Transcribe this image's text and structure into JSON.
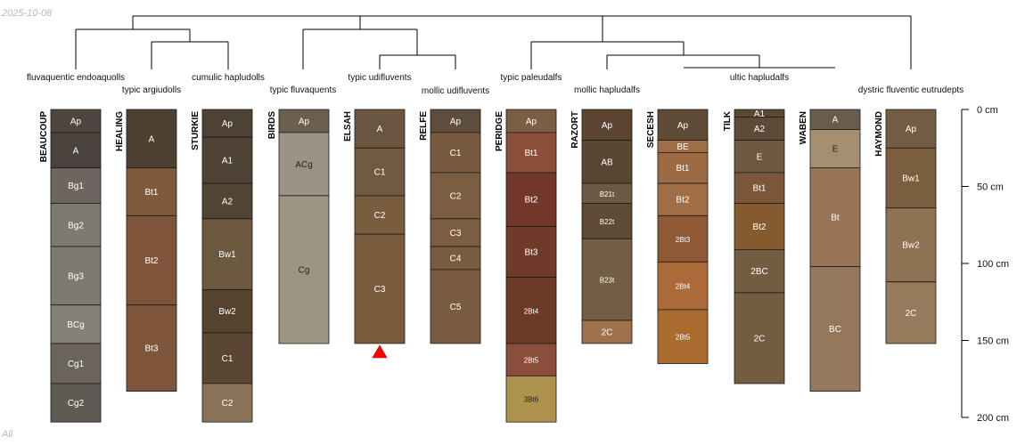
{
  "meta": {
    "date": "2025-10-08",
    "corner_label": "All"
  },
  "depth_axis": {
    "unit": "cm",
    "max": 200,
    "ticks": [
      {
        "value": 0,
        "label": "0 cm"
      },
      {
        "value": 50,
        "label": "50 cm"
      },
      {
        "value": 100,
        "label": "100 cm"
      },
      {
        "value": 150,
        "label": "150 cm"
      },
      {
        "value": 200,
        "label": "200 cm"
      }
    ]
  },
  "taxa": [
    "fluvaquentic endoaquolls",
    "typic argiudolls",
    "cumulic hapludolls",
    "typic fluvaquents",
    "typic udifluvents",
    "mollic udifluvents",
    "typic paleudalfs",
    "mollic hapludalfs",
    "ultic hapludalfs",
    "dystric fluventic eutrudepts"
  ],
  "profiles": [
    {
      "name": "BEAUCOUP",
      "horizons": [
        {
          "name": "Ap",
          "top": 0,
          "bottom": 15,
          "color": "#4e463f"
        },
        {
          "name": "A",
          "top": 15,
          "bottom": 38,
          "color": "#4a433d"
        },
        {
          "name": "Bg1",
          "top": 38,
          "bottom": 61,
          "color": "#6c665e"
        },
        {
          "name": "Bg2",
          "top": 61,
          "bottom": 89,
          "color": "#7e7a70"
        },
        {
          "name": "Bg3",
          "top": 89,
          "bottom": 127,
          "color": "#7e7a70"
        },
        {
          "name": "BCg",
          "top": 127,
          "bottom": 152,
          "color": "#858176"
        },
        {
          "name": "Cg1",
          "top": 152,
          "bottom": 178,
          "color": "#6a645b"
        },
        {
          "name": "Cg2",
          "top": 178,
          "bottom": 203,
          "color": "#5f5a52"
        }
      ]
    },
    {
      "name": "HEALING",
      "horizons": [
        {
          "name": "A",
          "top": 0,
          "bottom": 38,
          "color": "#4f4032"
        },
        {
          "name": "Bt1",
          "top": 38,
          "bottom": 69,
          "color": "#7d5a3c"
        },
        {
          "name": "Bt2",
          "top": 69,
          "bottom": 127,
          "color": "#7e553b"
        },
        {
          "name": "Bt3",
          "top": 127,
          "bottom": 183,
          "color": "#7d563c"
        }
      ]
    },
    {
      "name": "STURKIE",
      "horizons": [
        {
          "name": "Ap",
          "top": 0,
          "bottom": 18,
          "color": "#4e4234"
        },
        {
          "name": "A1",
          "top": 18,
          "bottom": 48,
          "color": "#4f4335"
        },
        {
          "name": "A2",
          "top": 48,
          "bottom": 71,
          "color": "#524434"
        },
        {
          "name": "Bw1",
          "top": 71,
          "bottom": 117,
          "color": "#6d5840"
        },
        {
          "name": "Bw2",
          "top": 117,
          "bottom": 145,
          "color": "#56432e"
        },
        {
          "name": "C1",
          "top": 145,
          "bottom": 178,
          "color": "#5a4632"
        },
        {
          "name": "C2",
          "top": 178,
          "bottom": 203,
          "color": "#8a7259"
        }
      ]
    },
    {
      "name": "BIRDS",
      "horizons": [
        {
          "name": "Ap",
          "top": 0,
          "bottom": 15,
          "color": "#6e5e4d"
        },
        {
          "name": "ACg",
          "top": 15,
          "bottom": 56,
          "color": "#9d9385"
        },
        {
          "name": "Cg",
          "top": 56,
          "bottom": 152,
          "color": "#9e9482"
        }
      ]
    },
    {
      "name": "ELSAH",
      "horizons": [
        {
          "name": "A",
          "top": 0,
          "bottom": 25,
          "color": "#6a5640"
        },
        {
          "name": "C1",
          "top": 25,
          "bottom": 56,
          "color": "#715a40"
        },
        {
          "name": "C2",
          "top": 56,
          "bottom": 81,
          "color": "#7a5c3e"
        },
        {
          "name": "C3",
          "top": 81,
          "bottom": 152,
          "color": "#7a5b3d"
        }
      ]
    },
    {
      "name": "RELFE",
      "horizons": [
        {
          "name": "Ap",
          "top": 0,
          "bottom": 15,
          "color": "#5e4c3c"
        },
        {
          "name": "C1",
          "top": 15,
          "bottom": 41,
          "color": "#7a5a3e"
        },
        {
          "name": "C2",
          "top": 41,
          "bottom": 71,
          "color": "#7d5d41"
        },
        {
          "name": "C3",
          "top": 71,
          "bottom": 89,
          "color": "#7d5d41"
        },
        {
          "name": "C4",
          "top": 89,
          "bottom": 104,
          "color": "#7a5b40"
        },
        {
          "name": "C5",
          "top": 104,
          "bottom": 152,
          "color": "#7a5b3f"
        }
      ]
    },
    {
      "name": "PERIDGE",
      "horizons": [
        {
          "name": "Ap",
          "top": 0,
          "bottom": 15,
          "color": "#7a5f45"
        },
        {
          "name": "Bt1",
          "top": 15,
          "bottom": 41,
          "color": "#8b4f3a"
        },
        {
          "name": "Bt2",
          "top": 41,
          "bottom": 76,
          "color": "#72372a"
        },
        {
          "name": "Bt3",
          "top": 76,
          "bottom": 109,
          "color": "#71392a"
        },
        {
          "name": "2Bt4",
          "top": 109,
          "bottom": 152,
          "color": "#6e3a28"
        },
        {
          "name": "2Bt5",
          "top": 152,
          "bottom": 173,
          "color": "#8b4e3a"
        },
        {
          "name": "3Bt6",
          "top": 173,
          "bottom": 203,
          "color": "#b0924f"
        }
      ]
    },
    {
      "name": "RAZORT",
      "horizons": [
        {
          "name": "Ap",
          "top": 0,
          "bottom": 20,
          "color": "#5b4531"
        },
        {
          "name": "AB",
          "top": 20,
          "bottom": 48,
          "color": "#5a4733"
        },
        {
          "name": "B21t",
          "top": 48,
          "bottom": 61,
          "color": "#6d5a46"
        },
        {
          "name": "B22t",
          "top": 61,
          "bottom": 84,
          "color": "#5e4a35"
        },
        {
          "name": "B23t",
          "top": 84,
          "bottom": 137,
          "color": "#735d45"
        },
        {
          "name": "2C",
          "top": 137,
          "bottom": 152,
          "color": "#a0714a"
        }
      ]
    },
    {
      "name": "SECESH",
      "horizons": [
        {
          "name": "Ap",
          "top": 0,
          "bottom": 20,
          "color": "#5f4a35"
        },
        {
          "name": "BE",
          "top": 20,
          "bottom": 28,
          "color": "#a06e44"
        },
        {
          "name": "Bt1",
          "top": 28,
          "bottom": 48,
          "color": "#9c6a43"
        },
        {
          "name": "Bt2",
          "top": 48,
          "bottom": 69,
          "color": "#a06d45"
        },
        {
          "name": "2Bt3",
          "top": 69,
          "bottom": 99,
          "color": "#8f5935"
        },
        {
          "name": "2Bt4",
          "top": 99,
          "bottom": 130,
          "color": "#ab6a37"
        },
        {
          "name": "2Bt5",
          "top": 130,
          "bottom": 165,
          "color": "#a96c2e"
        }
      ]
    },
    {
      "name": "TILK",
      "horizons": [
        {
          "name": "A1",
          "top": 0,
          "bottom": 5,
          "color": "#5a4836"
        },
        {
          "name": "A2",
          "top": 5,
          "bottom": 20,
          "color": "#5e4b37"
        },
        {
          "name": "E",
          "top": 20,
          "bottom": 41,
          "color": "#6e5840"
        },
        {
          "name": "Bt1",
          "top": 41,
          "bottom": 61,
          "color": "#7b5639"
        },
        {
          "name": "Bt2",
          "top": 61,
          "bottom": 91,
          "color": "#855a2f"
        },
        {
          "name": "2BC",
          "top": 91,
          "bottom": 119,
          "color": "#735c40"
        },
        {
          "name": "2C",
          "top": 119,
          "bottom": 178,
          "color": "#735c40"
        }
      ]
    },
    {
      "name": "WABEN",
      "horizons": [
        {
          "name": "A",
          "top": 0,
          "bottom": 13,
          "color": "#6a5b4b"
        },
        {
          "name": "E",
          "top": 13,
          "bottom": 38,
          "color": "#a58f71"
        },
        {
          "name": "Bt",
          "top": 38,
          "bottom": 102,
          "color": "#997557"
        },
        {
          "name": "BC",
          "top": 102,
          "bottom": 183,
          "color": "#95785b"
        }
      ]
    },
    {
      "name": "HAYMOND",
      "horizons": [
        {
          "name": "Ap",
          "top": 0,
          "bottom": 25,
          "color": "#745d45"
        },
        {
          "name": "Bw1",
          "top": 25,
          "bottom": 64,
          "color": "#7b5e3d"
        },
        {
          "name": "Bw2",
          "top": 64,
          "bottom": 112,
          "color": "#8e7253"
        },
        {
          "name": "2C",
          "top": 112,
          "bottom": 152,
          "color": "#967a5b"
        }
      ]
    }
  ]
}
